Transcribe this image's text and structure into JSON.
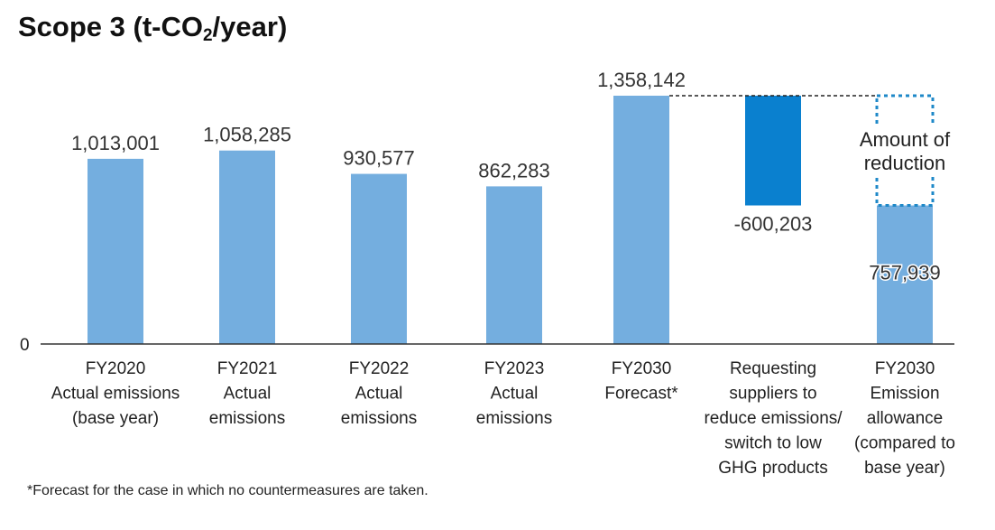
{
  "title_main": "Scope 3 (t-CO",
  "title_sub": "2",
  "title_end": "/year)",
  "footnote": "*Forecast for the case in which no countermeasures are taken.",
  "zero_label": "0",
  "reduction_label_lines": [
    "Amount of",
    "reduction"
  ],
  "colors": {
    "bar": "#74aedf",
    "reduction": "#0a80cf",
    "dotted_box": "#1e88c8",
    "axis": "#333333"
  },
  "chart_data": {
    "type": "bar",
    "subtype": "waterfall",
    "ylim": [
      0,
      1358142
    ],
    "categories": [
      [
        "FY2020",
        "Actual emissions",
        "(base year)"
      ],
      [
        "FY2021",
        "Actual",
        "emissions"
      ],
      [
        "FY2022",
        "Actual",
        "emissions"
      ],
      [
        "FY2023",
        "Actual",
        "emissions"
      ],
      [
        "FY2030",
        "Forecast*"
      ],
      [
        "Requesting",
        "suppliers to",
        "reduce emissions/",
        "switch to low",
        "GHG products"
      ],
      [
        "FY2030",
        "Emission",
        "allowance",
        "(compared to",
        "base year)"
      ]
    ],
    "values": [
      1013001,
      1058285,
      930577,
      862283,
      1358142,
      -600203,
      757939
    ],
    "value_labels": [
      "1,013,001",
      "1,058,285",
      "930,577",
      "862,283",
      "1,358,142",
      "-600,203",
      "757,939"
    ]
  }
}
